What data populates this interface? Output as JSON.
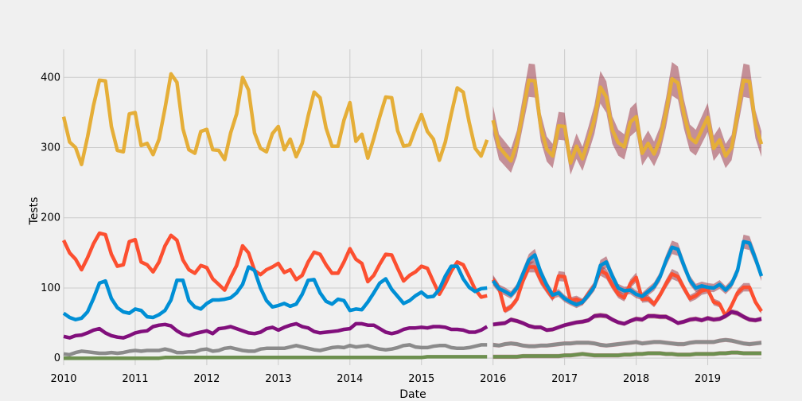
{
  "chart_data": {
    "type": "line",
    "title": "",
    "xlabel": "Date",
    "ylabel": "Tests",
    "xlim": [
      "2010-01",
      "2019-10"
    ],
    "ylim": [
      -10,
      440
    ],
    "grid": true,
    "legend": "none",
    "x_ticks": [
      "2010",
      "2011",
      "2012",
      "2013",
      "2014",
      "2015",
      "2016",
      "2017",
      "2018",
      "2019"
    ],
    "y_ticks": [
      0,
      100,
      200,
      300,
      400
    ],
    "forecast_start": "2016-01",
    "series": [
      {
        "color": "#e5ae38",
        "style": "history",
        "values": [
          344,
          308,
          300,
          276,
          315,
          360,
          396,
          395,
          330,
          296,
          294,
          348,
          350,
          303,
          306,
          290,
          312,
          356,
          405,
          393,
          327,
          297,
          292,
          323,
          326,
          297,
          296,
          283,
          321,
          348,
          400,
          382,
          321,
          299,
          294,
          320,
          330,
          297,
          312,
          287,
          306,
          345,
          379,
          371,
          328,
          302,
          302,
          339,
          364,
          309,
          319,
          285,
          313,
          344,
          372,
          371,
          324,
          302,
          304,
          327,
          347,
          323,
          312,
          282,
          308,
          348,
          385,
          379,
          336,
          299,
          288,
          311
        ]
      },
      {
        "color": "#e5ae38",
        "style": "forecast",
        "band": "#a0404e",
        "values": [
          339,
          301,
          291,
          281,
          306,
          351,
          396,
          395,
          329,
          298,
          288,
          331,
          330,
          278,
          302,
          284,
          311,
          340,
          386,
          372,
          325,
          307,
          301,
          336,
          344,
          292,
          306,
          291,
          311,
          350,
          398,
          392,
          348,
          314,
          307,
          325,
          343,
          299,
          311,
          288,
          300,
          348,
          396,
          394,
          333,
          305
        ]
      },
      {
        "color": "#fc4f30",
        "style": "history",
        "values": [
          168,
          150,
          141,
          126,
          143,
          163,
          178,
          176,
          148,
          131,
          133,
          166,
          169,
          137,
          133,
          123,
          137,
          160,
          175,
          168,
          140,
          126,
          121,
          132,
          129,
          113,
          105,
          97,
          115,
          132,
          160,
          150,
          125,
          119,
          126,
          130,
          135,
          122,
          126,
          112,
          118,
          137,
          151,
          148,
          133,
          121,
          121,
          137,
          156,
          141,
          135,
          109,
          118,
          134,
          148,
          147,
          128,
          110,
          118,
          123,
          131,
          128,
          109,
          91,
          106,
          124,
          137,
          133,
          116,
          98,
          87,
          89
        ]
      },
      {
        "color": "#fc4f30",
        "style": "forecast",
        "band": "#a0404e",
        "values": [
          112,
          100,
          68,
          73,
          84,
          110,
          130,
          130,
          111,
          98,
          86,
          117,
          116,
          82,
          84,
          80,
          92,
          103,
          125,
          120,
          104,
          91,
          86,
          106,
          115,
          84,
          85,
          77,
          90,
          106,
          120,
          116,
          100,
          85,
          89,
          96,
          98,
          80,
          77,
          60,
          75,
          93,
          101,
          101,
          80,
          67
        ]
      },
      {
        "color": "#008fd5",
        "style": "history",
        "values": [
          64,
          58,
          55,
          57,
          66,
          85,
          107,
          110,
          85,
          72,
          66,
          64,
          70,
          68,
          59,
          58,
          62,
          68,
          83,
          111,
          111,
          82,
          73,
          70,
          78,
          83,
          83,
          84,
          86,
          93,
          105,
          130,
          125,
          100,
          82,
          73,
          75,
          78,
          74,
          77,
          91,
          111,
          112,
          93,
          81,
          77,
          84,
          82,
          68,
          70,
          69,
          80,
          93,
          107,
          113,
          98,
          88,
          78,
          82,
          89,
          94,
          87,
          88,
          98,
          117,
          131,
          131,
          113,
          101,
          95,
          99,
          100
        ]
      },
      {
        "color": "#008fd5",
        "style": "forecast",
        "band": "#a0404e",
        "values": [
          110,
          99,
          95,
          90,
          100,
          120,
          140,
          147,
          122,
          104,
          90,
          93,
          85,
          80,
          76,
          80,
          90,
          102,
          132,
          137,
          117,
          100,
          96,
          97,
          91,
          88,
          95,
          102,
          116,
          139,
          158,
          155,
          132,
          111,
          100,
          103,
          101,
          100,
          105,
          97,
          106,
          125,
          166,
          164,
          142,
          117
        ]
      },
      {
        "color": "#810f7c",
        "style": "history",
        "values": [
          31,
          29,
          32,
          33,
          36,
          40,
          42,
          36,
          32,
          30,
          29,
          32,
          36,
          38,
          39,
          45,
          47,
          48,
          46,
          39,
          34,
          32,
          35,
          37,
          39,
          35,
          42,
          43,
          45,
          42,
          39,
          36,
          35,
          37,
          42,
          44,
          40,
          44,
          47,
          49,
          45,
          43,
          38,
          36,
          37,
          38,
          39,
          41,
          42,
          49,
          49,
          47,
          47,
          42,
          37,
          35,
          37,
          41,
          43,
          43,
          44,
          43,
          45,
          45,
          44,
          41,
          41,
          40,
          37,
          37,
          40,
          45
        ]
      },
      {
        "color": "#810f7c",
        "style": "forecast",
        "band": "#a0404e",
        "values": [
          48,
          49,
          50,
          55,
          53,
          50,
          46,
          44,
          44,
          40,
          41,
          44,
          47,
          49,
          51,
          52,
          54,
          60,
          61,
          60,
          55,
          51,
          49,
          53,
          56,
          55,
          60,
          60,
          59,
          59,
          55,
          50,
          52,
          55,
          56,
          54,
          57,
          55,
          56,
          60,
          66,
          64,
          59,
          55,
          54,
          56
        ]
      },
      {
        "color": "#8b8b8b",
        "style": "history",
        "values": [
          6,
          5,
          8,
          10,
          9,
          8,
          7,
          7,
          8,
          7,
          8,
          10,
          11,
          10,
          11,
          11,
          11,
          13,
          11,
          8,
          8,
          9,
          9,
          12,
          13,
          10,
          11,
          14,
          15,
          13,
          11,
          10,
          10,
          13,
          14,
          14,
          14,
          14,
          16,
          18,
          16,
          14,
          12,
          11,
          13,
          15,
          16,
          15,
          18,
          16,
          17,
          18,
          15,
          13,
          12,
          13,
          15,
          18,
          19,
          16,
          15,
          15,
          17,
          18,
          18,
          15,
          14,
          14,
          15,
          17,
          19,
          19
        ]
      },
      {
        "color": "#8b8b8b",
        "style": "forecast",
        "band": "#a0404e",
        "values": [
          19,
          18,
          20,
          21,
          20,
          18,
          17,
          17,
          18,
          18,
          19,
          20,
          21,
          21,
          22,
          22,
          22,
          21,
          19,
          18,
          19,
          20,
          21,
          22,
          23,
          21,
          22,
          23,
          23,
          22,
          21,
          20,
          20,
          22,
          23,
          23,
          23,
          23,
          25,
          26,
          25,
          23,
          21,
          20,
          21,
          22
        ]
      },
      {
        "color": "#6d904f",
        "style": "history",
        "values": [
          0,
          0,
          0,
          0,
          0,
          0,
          0,
          0,
          0,
          0,
          0,
          0,
          0,
          0,
          0,
          0,
          0,
          1,
          1,
          1,
          1,
          1,
          1,
          1,
          1,
          1,
          1,
          1,
          1,
          1,
          1,
          1,
          1,
          1,
          1,
          1,
          1,
          1,
          1,
          1,
          1,
          1,
          1,
          1,
          1,
          1,
          1,
          1,
          1,
          1,
          1,
          1,
          1,
          1,
          1,
          1,
          1,
          1,
          1,
          1,
          1,
          2,
          2,
          2,
          2,
          2,
          2,
          2,
          2,
          2,
          2,
          2
        ]
      },
      {
        "color": "#6d904f",
        "style": "forecast",
        "band": "#a0404e",
        "values": [
          2,
          2,
          2,
          2,
          2,
          3,
          3,
          3,
          3,
          3,
          3,
          3,
          4,
          4,
          5,
          6,
          5,
          4,
          4,
          4,
          4,
          4,
          5,
          5,
          6,
          6,
          7,
          7,
          7,
          6,
          6,
          5,
          5,
          5,
          6,
          6,
          6,
          6,
          7,
          7,
          8,
          8,
          7,
          7,
          7,
          7
        ]
      }
    ]
  }
}
